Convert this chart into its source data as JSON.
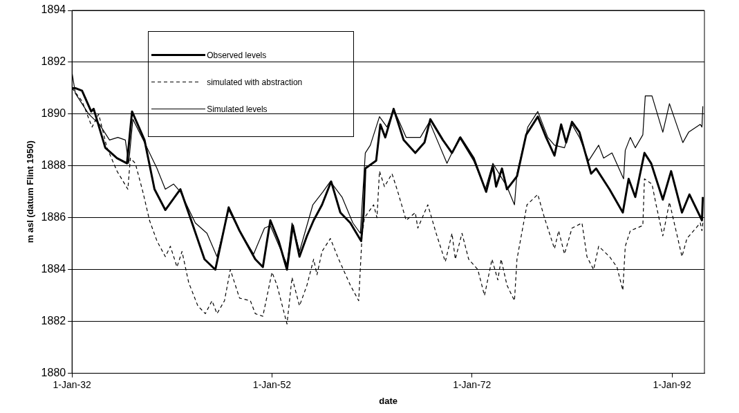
{
  "chart_data": {
    "type": "line",
    "xlabel": "date",
    "ylabel": "m asl (datum Flint 1950)",
    "xlim": [
      "1932-01-01",
      "1995-04-01"
    ],
    "xticks": [
      {
        "value": "1932-01-01",
        "label": "1-Jan-32"
      },
      {
        "value": "1952-01-01",
        "label": "1-Jan-52"
      },
      {
        "value": "1972-01-01",
        "label": "1-Jan-72"
      },
      {
        "value": "1992-01-01",
        "label": "1-Jan-92"
      }
    ],
    "ylim": [
      1880,
      1894
    ],
    "yticks": [
      1880,
      1882,
      1884,
      1886,
      1888,
      1890,
      1892,
      1894
    ],
    "grid": "y",
    "legend": "top left",
    "marker": "none",
    "series": [
      {
        "name": "Observed levels",
        "color": "#000000",
        "line_style": "solid",
        "x": [
          "1932-01",
          "1932-05",
          "1933-01",
          "1933-12",
          "1934-03",
          "1935-05",
          "1936-07",
          "1937-07",
          "1938-01",
          "1939-04",
          "1940-04",
          "1941-05",
          "1942-11",
          "1943-12",
          "1945-04",
          "1946-05",
          "1947-09",
          "1948-10",
          "1950-05",
          "1951-02",
          "1951-11",
          "1952-09",
          "1953-07",
          "1954-02",
          "1954-10",
          "1955-07",
          "1956-03",
          "1957-01",
          "1957-12",
          "1958-11",
          "1959-11",
          "1960-12",
          "1961-03",
          "1961-05",
          "1962-06",
          "1962-11",
          "1963-05",
          "1964-03",
          "1965-03",
          "1966-05",
          "1967-04",
          "1967-11",
          "1969-02",
          "1970-01",
          "1970-11",
          "1972-03",
          "1973-06",
          "1974-02",
          "1974-06",
          "1975-01",
          "1975-07",
          "1976-07",
          "1977-06",
          "1978-08",
          "1979-06",
          "1980-04",
          "1980-12",
          "1981-06",
          "1982-01",
          "1982-10",
          "1983-12",
          "1984-06",
          "1985-10",
          "1987-02",
          "1987-09",
          "1988-05",
          "1989-04",
          "1989-12",
          "1991-02",
          "1991-12",
          "1993-01",
          "1993-10",
          "1995-01",
          "1995-02"
        ],
        "values": [
          1891.0,
          1891.0,
          1890.9,
          1890.1,
          1890.2,
          1888.7,
          1888.3,
          1888.1,
          1890.1,
          1889.0,
          1887.1,
          1886.3,
          1887.1,
          1885.9,
          1884.4,
          1884.0,
          1886.4,
          1885.5,
          1884.4,
          1884.1,
          1885.9,
          1885.1,
          1884.0,
          1885.7,
          1884.5,
          1885.3,
          1885.9,
          1886.5,
          1887.4,
          1886.2,
          1885.8,
          1885.1,
          1886.2,
          1887.9,
          1888.2,
          1889.6,
          1889.1,
          1890.2,
          1889.0,
          1888.5,
          1888.9,
          1889.8,
          1889.0,
          1888.5,
          1889.1,
          1888.3,
          1887.0,
          1888.0,
          1887.2,
          1887.9,
          1887.1,
          1887.6,
          1889.2,
          1889.9,
          1889.1,
          1888.4,
          1889.6,
          1888.9,
          1889.7,
          1889.3,
          1887.7,
          1887.9,
          1887.1,
          1886.2,
          1887.5,
          1886.8,
          1888.5,
          1888.1,
          1886.7,
          1887.8,
          1886.2,
          1886.9,
          1885.9,
          1886.8
        ]
      },
      {
        "name": "simulated with abstraction",
        "color": "#000000",
        "line_style": "dashed",
        "x": [
          "1932-01",
          "1933-01",
          "1934-01",
          "1934-09",
          "1935-07",
          "1936-07",
          "1937-08",
          "1937-11",
          "1938-05",
          "1939-02",
          "1939-10",
          "1940-07",
          "1941-05",
          "1941-11",
          "1942-07",
          "1943-01",
          "1943-09",
          "1944-08",
          "1945-05",
          "1946-01",
          "1946-07",
          "1947-04",
          "1947-11",
          "1948-10",
          "1949-11",
          "1950-05",
          "1951-02",
          "1952-01",
          "1952-07",
          "1953-07",
          "1954-01",
          "1954-10",
          "1955-07",
          "1956-03",
          "1956-07",
          "1957-01",
          "1957-11",
          "1958-09",
          "1959-11",
          "1960-09",
          "1961-01",
          "1961-04",
          "1962-03",
          "1962-07",
          "1962-10",
          "1963-04",
          "1964-01",
          "1964-08",
          "1965-06",
          "1966-05",
          "1966-08",
          "1967-08",
          "1968-06",
          "1969-05",
          "1970-01",
          "1970-05",
          "1971-01",
          "1971-09",
          "1972-08",
          "1973-04",
          "1974-01",
          "1974-08",
          "1974-12",
          "1975-07",
          "1976-04",
          "1976-07",
          "1977-07",
          "1978-08",
          "1979-04",
          "1980-04",
          "1980-09",
          "1981-04",
          "1982-01",
          "1983-01",
          "1983-07",
          "1984-03",
          "1984-09",
          "1985-10",
          "1986-07",
          "1987-02",
          "1987-05",
          "1987-11",
          "1989-02",
          "1989-04",
          "1990-01",
          "1990-06",
          "1991-02",
          "1991-10",
          "1993-01",
          "1993-07",
          "1994-11",
          "1995-01",
          "1995-02"
        ],
        "values": [
          1891.0,
          1890.5,
          1889.5,
          1890.0,
          1888.7,
          1887.8,
          1887.1,
          1888.3,
          1888.1,
          1887.0,
          1885.9,
          1885.1,
          1884.5,
          1884.9,
          1884.1,
          1884.7,
          1883.5,
          1882.6,
          1882.3,
          1882.8,
          1882.3,
          1882.8,
          1884.0,
          1882.9,
          1882.8,
          1882.3,
          1882.2,
          1883.9,
          1883.4,
          1881.9,
          1883.7,
          1882.6,
          1883.4,
          1884.4,
          1883.8,
          1884.7,
          1885.2,
          1884.4,
          1883.4,
          1882.8,
          1885.3,
          1886.0,
          1886.5,
          1886.0,
          1887.8,
          1887.2,
          1887.7,
          1887.0,
          1885.9,
          1886.2,
          1885.6,
          1886.5,
          1885.4,
          1884.3,
          1885.4,
          1884.4,
          1885.4,
          1884.4,
          1884.0,
          1883.0,
          1884.4,
          1883.6,
          1884.4,
          1883.4,
          1882.8,
          1884.4,
          1886.5,
          1886.9,
          1886.0,
          1884.8,
          1885.5,
          1884.6,
          1885.6,
          1885.8,
          1884.5,
          1884.0,
          1884.9,
          1884.5,
          1884.1,
          1883.2,
          1884.9,
          1885.5,
          1885.7,
          1887.5,
          1887.3,
          1886.5,
          1885.3,
          1886.6,
          1884.5,
          1885.2,
          1885.8,
          1885.5,
          1885.8
        ]
      },
      {
        "name": "Simulated levels",
        "color": "#000000",
        "line_style": "solid",
        "x": [
          "1932-01",
          "1932-05",
          "1933-09",
          "1934-10",
          "1935-10",
          "1936-08",
          "1937-05",
          "1937-09",
          "1938-02",
          "1939-04",
          "1940-07",
          "1941-05",
          "1942-03",
          "1942-11",
          "1944-05",
          "1945-07",
          "1946-07",
          "1947-09",
          "1948-10",
          "1950-03",
          "1951-04",
          "1951-11",
          "1953-07",
          "1954-01",
          "1954-10",
          "1956-02",
          "1957-02",
          "1957-11",
          "1959-01",
          "1960-02",
          "1960-11",
          "1961-05",
          "1961-11",
          "1962-10",
          "1963-07",
          "1964-03",
          "1965-06",
          "1966-11",
          "1967-10",
          "1969-07",
          "1970-10",
          "1972-03",
          "1973-05",
          "1974-02",
          "1975-07",
          "1976-04",
          "1976-07",
          "1977-08",
          "1978-08",
          "1979-08",
          "1980-04",
          "1981-04",
          "1982-01",
          "1982-10",
          "1983-09",
          "1984-09",
          "1985-03",
          "1986-01",
          "1987-03",
          "1987-05",
          "1987-11",
          "1988-05",
          "1989-02",
          "1989-05",
          "1990-01",
          "1991-02",
          "1991-10",
          "1993-02",
          "1993-09",
          "1994-11",
          "1995-01",
          "1995-02"
        ],
        "values": [
          1891.6,
          1890.8,
          1890.0,
          1889.6,
          1889.0,
          1889.1,
          1889.0,
          1888.1,
          1889.8,
          1888.9,
          1887.9,
          1887.1,
          1887.3,
          1887.0,
          1885.8,
          1885.4,
          1884.5,
          1886.3,
          1885.5,
          1884.6,
          1885.6,
          1885.7,
          1884.2,
          1885.8,
          1884.7,
          1886.5,
          1887.0,
          1887.4,
          1886.8,
          1885.8,
          1885.4,
          1888.5,
          1888.8,
          1889.9,
          1889.5,
          1890.2,
          1889.1,
          1889.1,
          1889.7,
          1888.1,
          1889.1,
          1888.2,
          1887.1,
          1888.1,
          1887.2,
          1886.5,
          1887.7,
          1889.5,
          1890.1,
          1889.1,
          1888.8,
          1888.7,
          1889.6,
          1889.1,
          1888.2,
          1888.8,
          1888.3,
          1888.5,
          1887.5,
          1888.6,
          1889.1,
          1888.7,
          1889.2,
          1890.7,
          1890.7,
          1889.3,
          1890.4,
          1888.9,
          1889.3,
          1889.6,
          1889.5,
          1890.3
        ]
      }
    ]
  }
}
